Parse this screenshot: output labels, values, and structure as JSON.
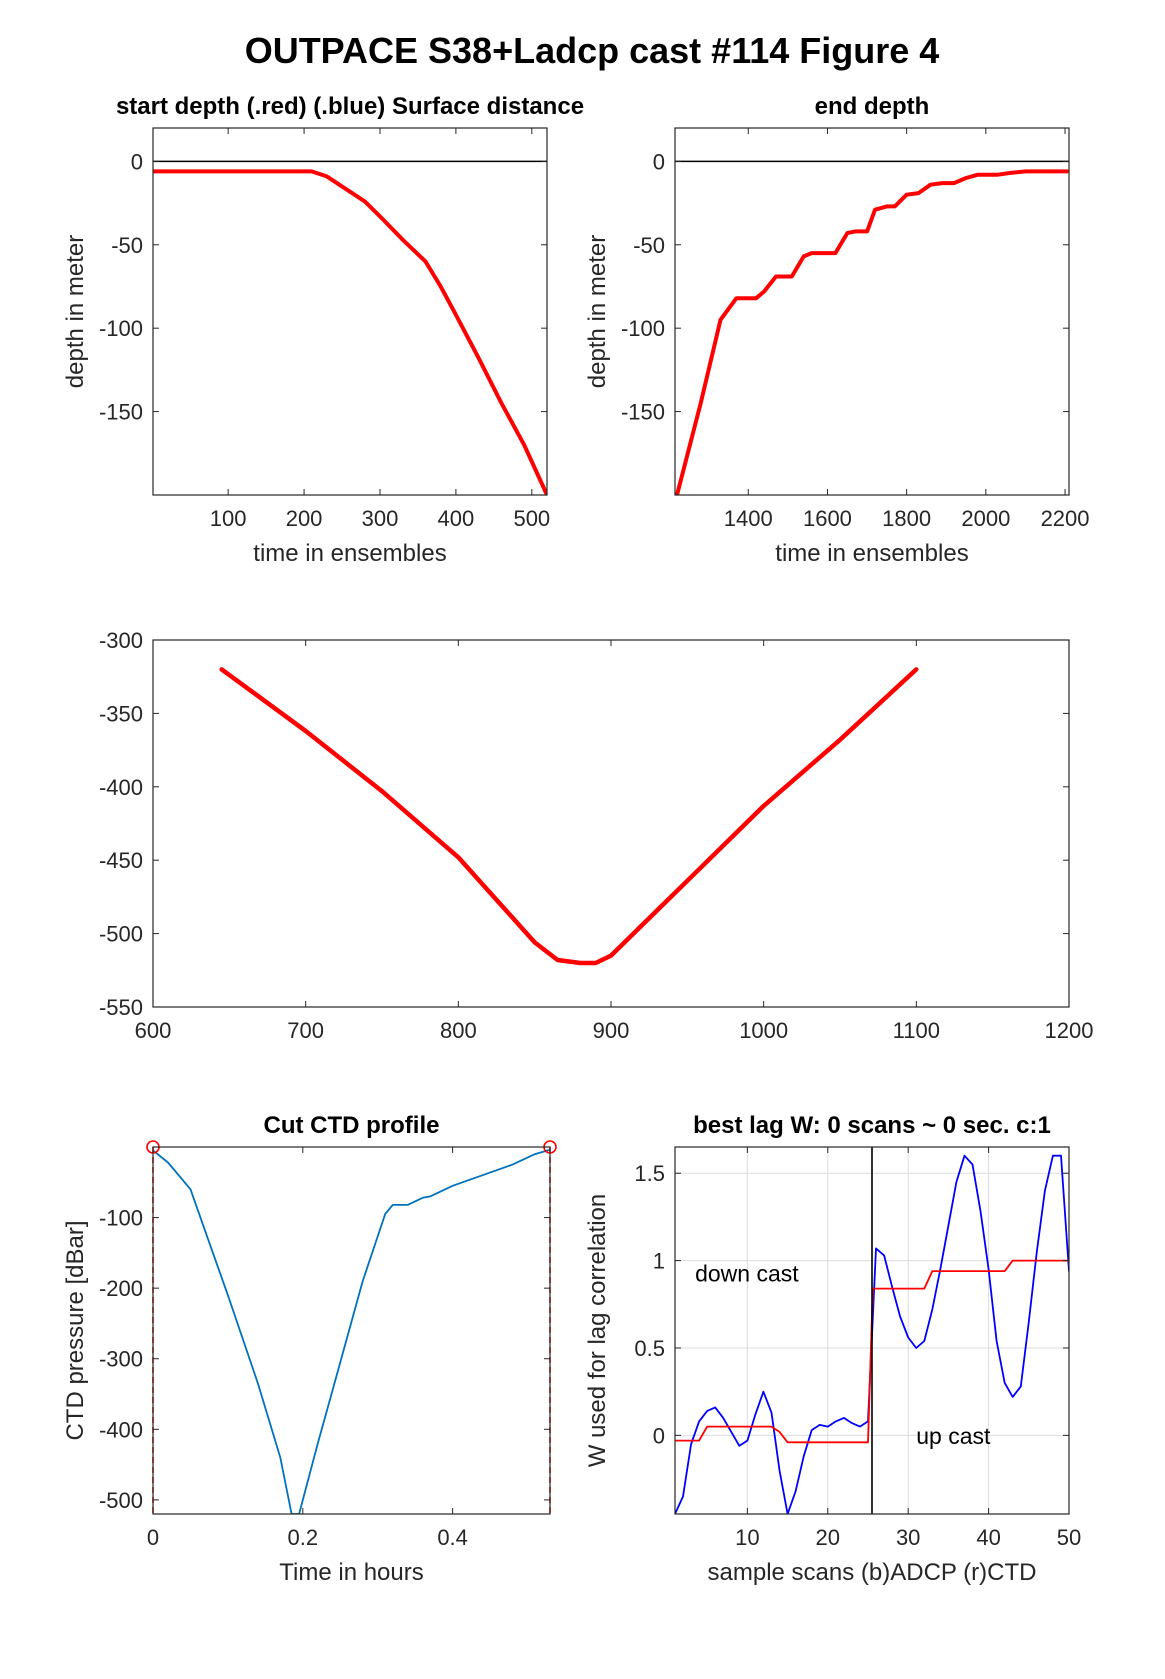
{
  "figure_title": "OUTPACE S38+Ladcp cast #114   Figure 4",
  "colors": {
    "red": "#ff0000",
    "blue": "#0000ff",
    "ctd_blue": "#0072bd",
    "black": "#000000",
    "grid": "#dcdcdc"
  },
  "chart_data": [
    {
      "id": "start-depth",
      "type": "line",
      "title": "start depth (.red) (.blue) Surface distance",
      "xlabel": "time in ensembles",
      "ylabel": "depth in meter",
      "xlim": [
        1,
        520
      ],
      "ylim": [
        -200,
        20
      ],
      "xticks": [
        100,
        200,
        300,
        400,
        500
      ],
      "yticks": [
        0,
        -50,
        -100,
        -150
      ],
      "reference_line_y": 0,
      "grid": false,
      "series": [
        {
          "color": "red",
          "x": [
            1,
            100,
            210,
            230,
            250,
            280,
            300,
            330,
            360,
            380,
            400,
            430,
            460,
            490,
            520
          ],
          "y": [
            -6,
            -6,
            -6,
            -9,
            -15,
            -24,
            -33,
            -47,
            -60,
            -75,
            -92,
            -118,
            -145,
            -170,
            -200
          ]
        }
      ]
    },
    {
      "id": "end-depth",
      "type": "line",
      "title": "end depth",
      "xlabel": "time in ensembles",
      "ylabel": "depth in meter",
      "xlim": [
        1215,
        2210
      ],
      "ylim": [
        -200,
        20
      ],
      "xticks": [
        1400,
        1600,
        1800,
        2000,
        2200
      ],
      "yticks": [
        0,
        -50,
        -100,
        -150
      ],
      "reference_line_y": 0,
      "grid": false,
      "series": [
        {
          "color": "red",
          "x": [
            1220,
            1280,
            1330,
            1370,
            1390,
            1420,
            1440,
            1470,
            1490,
            1510,
            1540,
            1560,
            1580,
            1600,
            1620,
            1650,
            1670,
            1700,
            1720,
            1750,
            1770,
            1800,
            1830,
            1860,
            1890,
            1920,
            1950,
            1980,
            2000,
            2030,
            2060,
            2100,
            2150,
            2205
          ],
          "y": [
            -200,
            -145,
            -95,
            -82,
            -82,
            -82,
            -78,
            -69,
            -69,
            -69,
            -57,
            -55,
            -55,
            -55,
            -55,
            -43,
            -42,
            -42,
            -29,
            -27,
            -27,
            -20,
            -19,
            -14,
            -13,
            -13,
            -10,
            -8,
            -8,
            -8,
            -7,
            -6,
            -6,
            -6
          ]
        }
      ]
    },
    {
      "id": "middle-profile",
      "type": "line",
      "title": "",
      "xlabel": "",
      "ylabel": "",
      "xlim": [
        600,
        1200
      ],
      "ylim": [
        -550,
        -300
      ],
      "xticks": [
        600,
        700,
        800,
        900,
        1000,
        1100,
        1200
      ],
      "yticks": [
        -300,
        -350,
        -400,
        -450,
        -500,
        -550
      ],
      "grid": false,
      "series": [
        {
          "color": "red",
          "x": [
            645,
            700,
            750,
            800,
            850,
            865,
            880,
            890,
            900,
            950,
            1000,
            1050,
            1100
          ],
          "y": [
            -320,
            -362,
            -403,
            -448,
            -506,
            -518,
            -520,
            -520,
            -515,
            -464,
            -413,
            -368,
            -320
          ]
        }
      ]
    },
    {
      "id": "cut-ctd",
      "type": "line",
      "title": "Cut CTD profile",
      "xlabel": "Time in hours",
      "ylabel": "CTD pressure [dBar]",
      "xlim": [
        0,
        0.53
      ],
      "ylim": [
        -520,
        0
      ],
      "xticks": [
        0,
        0.2,
        0.4
      ],
      "xticklabels": [
        "0",
        "0.2",
        "0.4"
      ],
      "yticks": [
        -100,
        -200,
        -300,
        -400,
        -500
      ],
      "grid": false,
      "series": [
        {
          "color": "ctd_blue",
          "x": [
            0,
            0.02,
            0.05,
            0.08,
            0.1,
            0.14,
            0.17,
            0.185,
            0.195,
            0.22,
            0.25,
            0.28,
            0.31,
            0.32,
            0.34,
            0.36,
            0.37,
            0.4,
            0.44,
            0.48,
            0.51,
            0.53
          ],
          "y": [
            -5,
            -22,
            -60,
            -150,
            -210,
            -335,
            -440,
            -520,
            -520,
            -420,
            -305,
            -190,
            -95,
            -82,
            -82,
            -72,
            -70,
            -55,
            -40,
            -25,
            -10,
            -4
          ]
        }
      ],
      "markers": [
        {
          "x": 0,
          "y": 0
        },
        {
          "x": 0.53,
          "y": 0
        }
      ],
      "vertical_dashed_x": [
        0,
        0.53
      ]
    },
    {
      "id": "best-lag",
      "type": "line",
      "title": "best lag W: 0 scans ~ 0 sec.  c:1",
      "xlabel": "sample scans (b)ADCP (r)CTD",
      "ylabel": "W used for lag correlation",
      "xlim": [
        1,
        50
      ],
      "ylim": [
        -0.45,
        1.65
      ],
      "xticks": [
        10,
        20,
        30,
        40,
        50
      ],
      "yticks": [
        0,
        0.5,
        1,
        1.5
      ],
      "yticklabels": [
        "0",
        "0.5",
        "1",
        "1.5"
      ],
      "grid": true,
      "vertical_line_x": 25.5,
      "annotations": [
        {
          "text": "down cast",
          "x": 3.5,
          "y": 0.88
        },
        {
          "text": "up cast",
          "x": 31,
          "y": -0.05
        }
      ],
      "series": [
        {
          "color": "blue",
          "x": [
            1,
            2,
            3,
            4,
            5,
            6,
            7,
            8,
            9,
            10,
            11,
            12,
            13,
            14,
            15,
            16,
            17,
            18,
            19,
            20,
            21,
            22,
            23,
            24,
            25,
            26,
            27,
            28,
            29,
            30,
            31,
            32,
            33,
            34,
            35,
            36,
            37,
            38,
            39,
            40,
            41,
            42,
            43,
            44,
            45,
            46,
            47,
            48,
            49,
            50
          ],
          "y": [
            -0.45,
            -0.35,
            -0.05,
            0.08,
            0.14,
            0.16,
            0.1,
            0.02,
            -0.06,
            -0.03,
            0.12,
            0.25,
            0.13,
            -0.2,
            -0.45,
            -0.32,
            -0.12,
            0.03,
            0.06,
            0.05,
            0.08,
            0.1,
            0.07,
            0.05,
            0.08,
            1.07,
            1.03,
            0.85,
            0.68,
            0.56,
            0.5,
            0.54,
            0.72,
            0.95,
            1.2,
            1.45,
            1.6,
            1.55,
            1.28,
            0.95,
            0.54,
            0.3,
            0.22,
            0.28,
            0.65,
            1.05,
            1.4,
            1.6,
            1.6,
            0.94
          ]
        },
        {
          "color": "red",
          "x": [
            1,
            4,
            5,
            13,
            14,
            15,
            25,
            25.6,
            26,
            32,
            33,
            42,
            43,
            50
          ],
          "y": [
            -0.03,
            -0.03,
            0.05,
            0.05,
            0.02,
            -0.04,
            -0.04,
            0.84,
            0.84,
            0.84,
            0.94,
            0.94,
            1.0,
            1.0
          ]
        }
      ]
    }
  ]
}
